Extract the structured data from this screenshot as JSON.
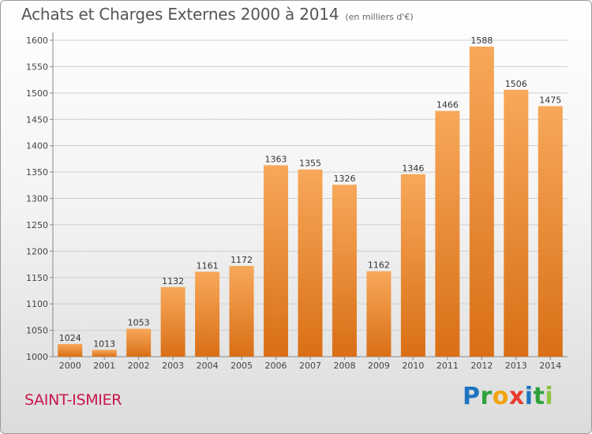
{
  "header": {
    "title": "Achats et Charges Externes 2000 à 2014",
    "subtitle": "(en milliers d'€)"
  },
  "footer": {
    "town": "SAINT-ISMIER",
    "brand": [
      "P",
      "r",
      "o",
      "x",
      "i",
      "t",
      "i"
    ]
  },
  "colors": {
    "bar_light": "#f7a85a",
    "bar_dark": "#d96f16",
    "grid": "#cfcfcf",
    "town": "#c8174b",
    "brand": [
      "#1f74c0",
      "#2fa33a",
      "#f2a20c",
      "#e63c2e",
      "#1f74c0",
      "#2fa33a",
      "#8fc43f"
    ]
  },
  "chart_data": {
    "type": "bar",
    "categories": [
      "2000",
      "2001",
      "2002",
      "2003",
      "2004",
      "2005",
      "2006",
      "2007",
      "2008",
      "2009",
      "2010",
      "2011",
      "2012",
      "2013",
      "2014"
    ],
    "values": [
      1024,
      1013,
      1053,
      1132,
      1161,
      1172,
      1363,
      1355,
      1326,
      1162,
      1346,
      1466,
      1588,
      1506,
      1475
    ],
    "yticks": [
      1000,
      1050,
      1100,
      1150,
      1200,
      1250,
      1300,
      1350,
      1400,
      1450,
      1500,
      1550,
      1600
    ],
    "ylim": [
      1000,
      1600
    ],
    "grid": true
  }
}
